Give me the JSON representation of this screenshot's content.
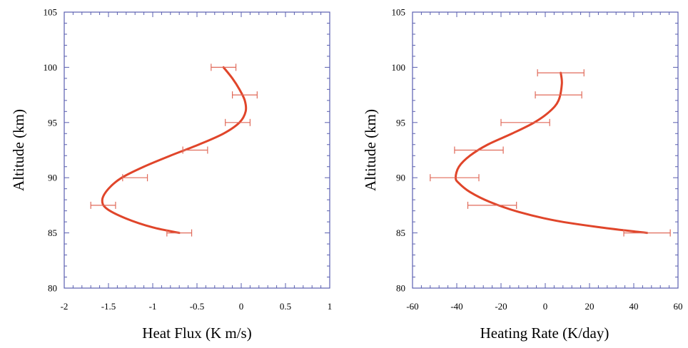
{
  "colors": {
    "curve": "#e0452a",
    "errorbar": "#e06a5a",
    "axis": "#5a5fb0"
  },
  "chart_data": [
    {
      "type": "line",
      "title": "",
      "xlabel": "Heat Flux (K m/s)",
      "ylabel": "Altitude (km)",
      "xlim": [
        -2,
        1
      ],
      "ylim": [
        80,
        105
      ],
      "xticks": [
        -2,
        -1.5,
        -1,
        -0.5,
        0,
        0.5,
        1
      ],
      "xtick_labels": [
        "-2",
        "-1.5",
        "-1",
        "-0.5",
        "0",
        "0.5",
        "1"
      ],
      "yticks": [
        80,
        85,
        90,
        95,
        100,
        105
      ],
      "ytick_labels": [
        "80",
        "85",
        "90",
        "95",
        "100",
        "105"
      ],
      "grid": false,
      "series": [
        {
          "x": [
            -0.7,
            -1.0,
            -1.3,
            -1.52,
            -1.57,
            -1.5,
            -1.35,
            -1.1,
            -0.8,
            -0.48,
            -0.2,
            -0.02,
            0.05,
            0.04,
            -0.02,
            -0.1,
            -0.2
          ],
          "y": [
            85,
            85.5,
            86.3,
            87.2,
            88,
            89,
            90,
            91,
            92,
            93,
            94,
            95,
            96,
            97,
            98,
            99,
            100
          ]
        }
      ],
      "error_bars": [
        {
          "y": 85,
          "x": -0.7,
          "xerr": 0.14
        },
        {
          "y": 87.5,
          "x": -1.56,
          "xerr": 0.14
        },
        {
          "y": 90,
          "x": -1.2,
          "xerr": 0.14
        },
        {
          "y": 92.5,
          "x": -0.52,
          "xerr": 0.14
        },
        {
          "y": 95,
          "x": -0.04,
          "xerr": 0.14
        },
        {
          "y": 97.5,
          "x": 0.04,
          "xerr": 0.14
        },
        {
          "y": 100,
          "x": -0.2,
          "xerr": 0.14
        }
      ]
    },
    {
      "type": "line",
      "title": "",
      "xlabel": "Heating Rate (K/day)",
      "ylabel": "Altitude (km)",
      "xlim": [
        -60,
        60
      ],
      "ylim": [
        80,
        105
      ],
      "xticks": [
        -60,
        -40,
        -20,
        0,
        20,
        40,
        60
      ],
      "xtick_labels": [
        "-60",
        "-40",
        "-20",
        "0",
        "20",
        "40",
        "60"
      ],
      "yticks": [
        80,
        85,
        90,
        95,
        100,
        105
      ],
      "ytick_labels": [
        "80",
        "85",
        "90",
        "95",
        "100",
        "105"
      ],
      "grid": false,
      "series": [
        {
          "x": [
            46,
            25,
            5,
            -12,
            -25,
            -34,
            -39,
            -40.5,
            -39,
            -34,
            -26,
            -15,
            -5,
            2,
            6,
            7.5,
            7
          ],
          "y": [
            85,
            85.5,
            86.1,
            86.9,
            87.8,
            88.7,
            89.5,
            90,
            91,
            92,
            93,
            94,
            95,
            96,
            97,
            98.5,
            99.5
          ]
        }
      ],
      "error_bars": [
        {
          "y": 85,
          "x": 46,
          "xerr": 10.5
        },
        {
          "y": 87.5,
          "x": -24,
          "xerr": 11
        },
        {
          "y": 90,
          "x": -41,
          "xerr": 11
        },
        {
          "y": 92.5,
          "x": -30,
          "xerr": 11
        },
        {
          "y": 95,
          "x": -9,
          "xerr": 11
        },
        {
          "y": 97.5,
          "x": 6,
          "xerr": 10.5
        },
        {
          "y": 99.5,
          "x": 7,
          "xerr": 10.5
        }
      ]
    }
  ]
}
